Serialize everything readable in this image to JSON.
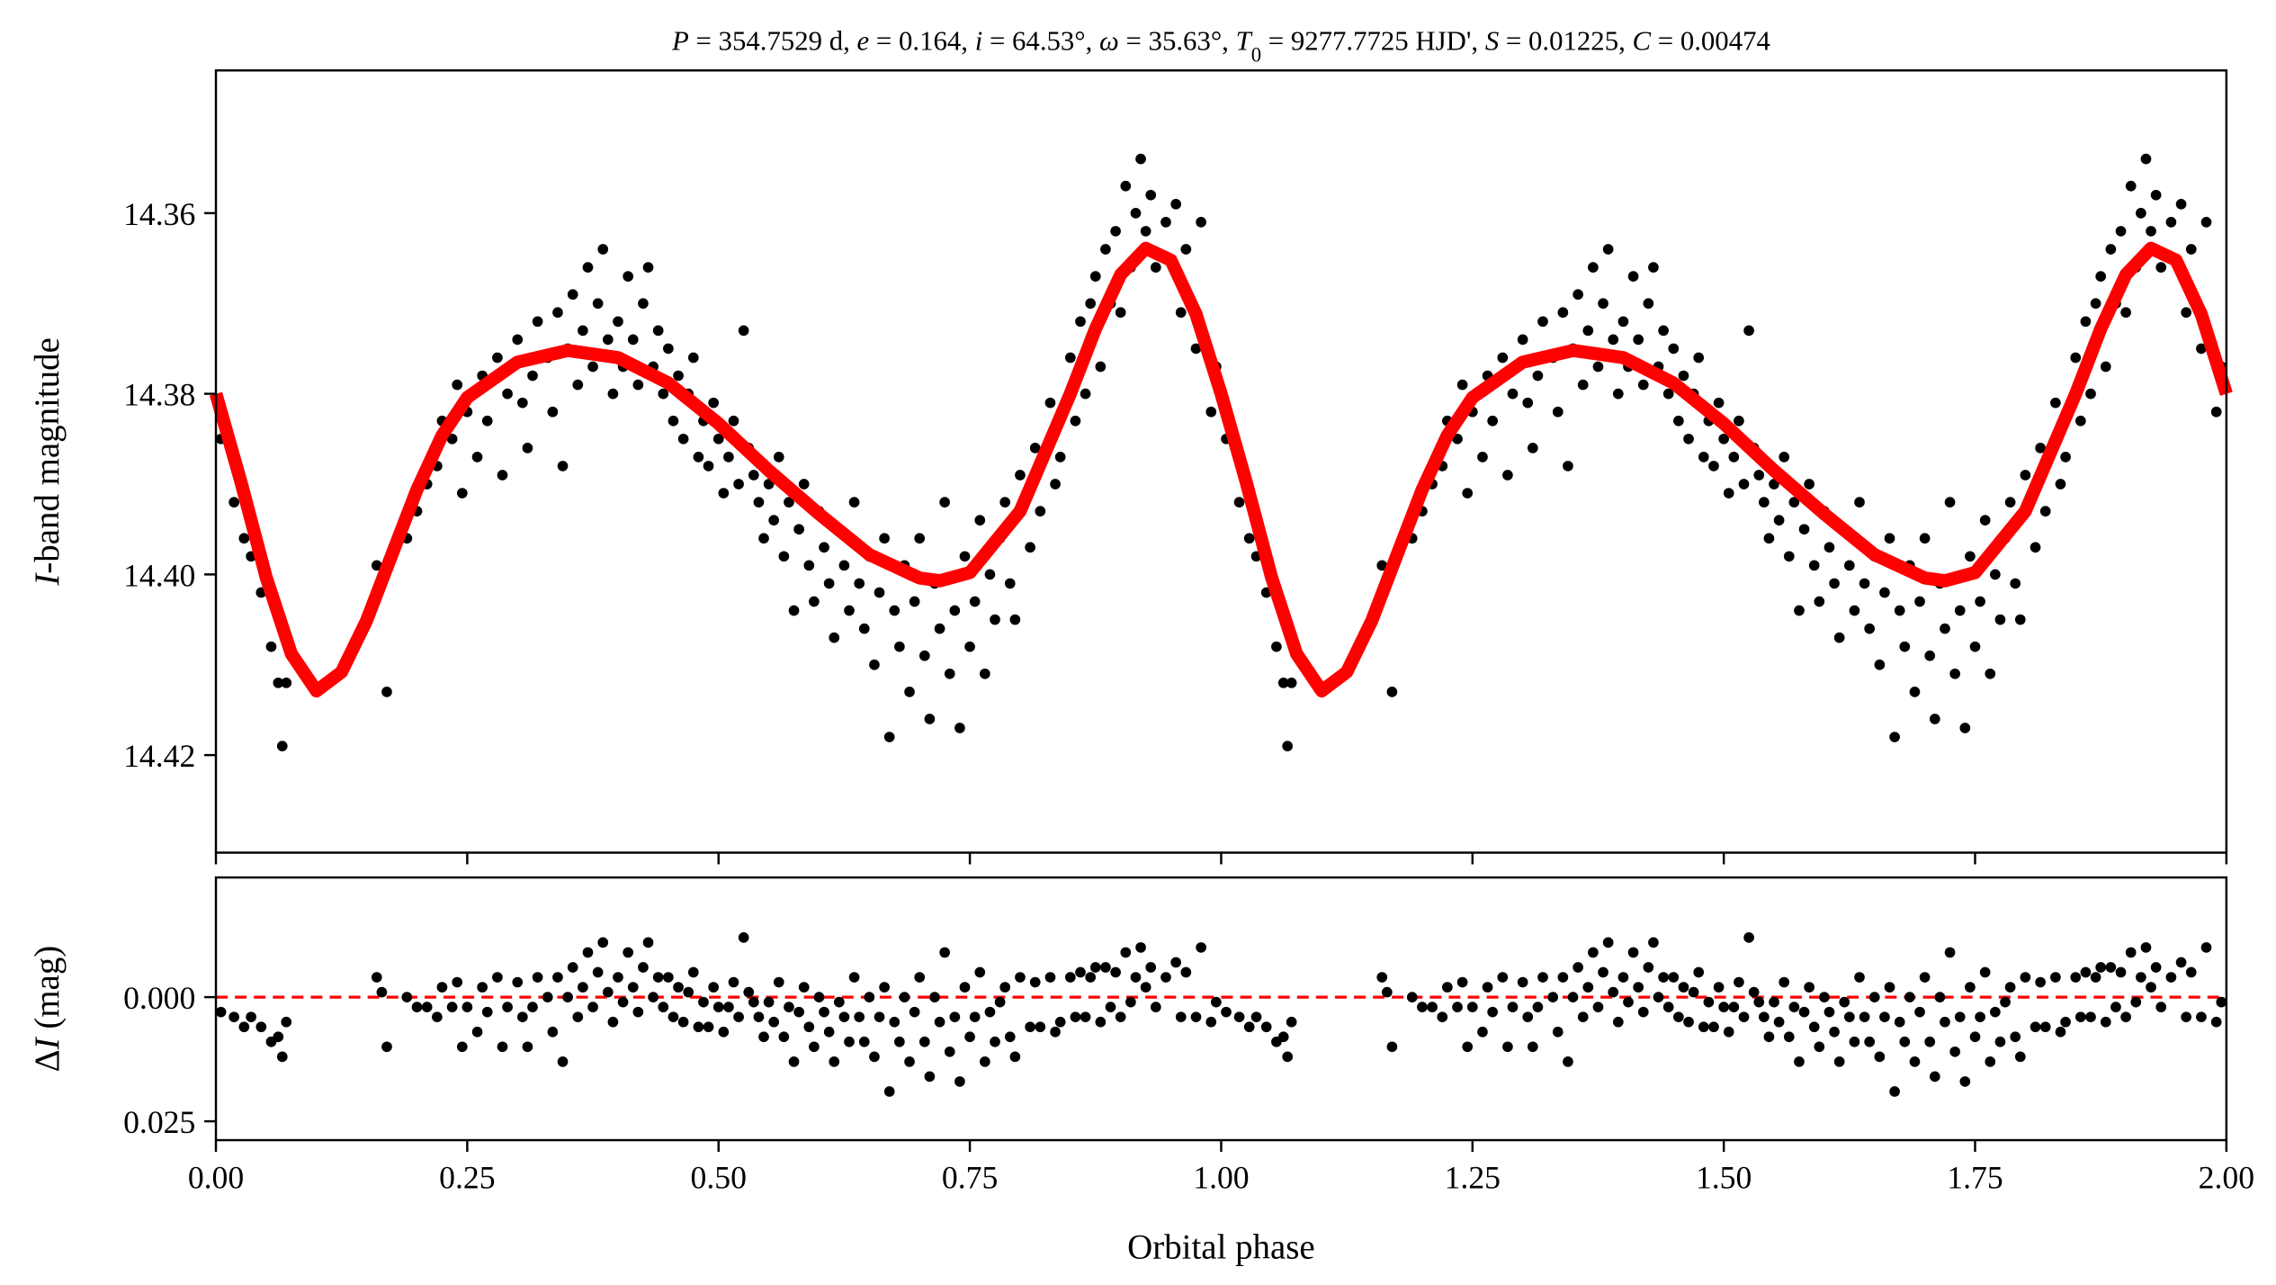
{
  "chart_data": [
    {
      "type": "scatter",
      "panel": "top",
      "title_segments": [
        {
          "t": "P",
          "i": true
        },
        {
          "t": " = 354.7529 d, "
        },
        {
          "t": "e",
          "i": true
        },
        {
          "t": " = 0.164, "
        },
        {
          "t": "i",
          "i": true
        },
        {
          "t": " = 64.53°, "
        },
        {
          "t": "ω",
          "i": true
        },
        {
          "t": " = 35.63°, "
        },
        {
          "t": "T",
          "i": true
        },
        {
          "t": "0",
          "sub": true
        },
        {
          "t": " = 9277.7725 HJD', "
        },
        {
          "t": "S",
          "i": true
        },
        {
          "t": " = 0.01225, "
        },
        {
          "t": "C",
          "i": true
        },
        {
          "t": " = 0.00474"
        }
      ],
      "ylabel_italic": "I",
      "ylabel_rest": "-band magnitude",
      "ylim": [
        14.4308,
        14.3442
      ],
      "yticks": [
        "14.36",
        "14.38",
        "14.40",
        "14.42"
      ],
      "xlim": [
        0,
        2
      ],
      "grid": false,
      "point_color": "#000000",
      "model_color": "#ff0000",
      "model_curve": [
        [
          0.0,
          14.38
        ],
        [
          0.025,
          14.3898
        ],
        [
          0.05,
          14.4003
        ],
        [
          0.075,
          14.4088
        ],
        [
          0.1,
          14.4129
        ],
        [
          0.125,
          14.4108
        ],
        [
          0.15,
          14.4051
        ],
        [
          0.175,
          14.3978
        ],
        [
          0.2,
          14.3906
        ],
        [
          0.225,
          14.3846
        ],
        [
          0.25,
          14.3804
        ],
        [
          0.3,
          14.3765
        ],
        [
          0.35,
          14.3752
        ],
        [
          0.4,
          14.376
        ],
        [
          0.45,
          14.3788
        ],
        [
          0.5,
          14.3833
        ],
        [
          0.55,
          14.3885
        ],
        [
          0.6,
          14.3933
        ],
        [
          0.65,
          14.3978
        ],
        [
          0.7,
          14.4004
        ],
        [
          0.72,
          14.4007
        ],
        [
          0.75,
          14.3998
        ],
        [
          0.8,
          14.393
        ],
        [
          0.85,
          14.38
        ],
        [
          0.875,
          14.3728
        ],
        [
          0.9,
          14.3668
        ],
        [
          0.925,
          14.3639
        ],
        [
          0.95,
          14.3652
        ],
        [
          0.975,
          14.3712
        ],
        [
          1.0,
          14.38
        ]
      ],
      "points_phase_mag_residual": [
        [
          0.005,
          14.385,
          0.003
        ],
        [
          0.018,
          14.392,
          0.004
        ],
        [
          0.028,
          14.396,
          0.006
        ],
        [
          0.035,
          14.398,
          0.004
        ],
        [
          0.045,
          14.402,
          0.006
        ],
        [
          0.055,
          14.408,
          0.009
        ],
        [
          0.062,
          14.412,
          0.008
        ],
        [
          0.066,
          14.419,
          0.012
        ],
        [
          0.07,
          14.412,
          0.005
        ],
        [
          0.16,
          14.399,
          -0.004
        ],
        [
          0.165,
          14.401,
          -0.001
        ],
        [
          0.17,
          14.413,
          0.01
        ],
        [
          0.19,
          14.396,
          0.0
        ],
        [
          0.2,
          14.393,
          0.002
        ],
        [
          0.21,
          14.39,
          0.002
        ],
        [
          0.22,
          14.388,
          0.004
        ],
        [
          0.225,
          14.383,
          -0.002
        ],
        [
          0.235,
          14.385,
          0.002
        ],
        [
          0.24,
          14.379,
          -0.003
        ],
        [
          0.245,
          14.391,
          0.01
        ],
        [
          0.25,
          14.382,
          0.002
        ],
        [
          0.26,
          14.387,
          0.007
        ],
        [
          0.265,
          14.378,
          -0.002
        ],
        [
          0.27,
          14.383,
          0.003
        ],
        [
          0.28,
          14.376,
          -0.004
        ],
        [
          0.285,
          14.389,
          0.01
        ],
        [
          0.29,
          14.38,
          0.002
        ],
        [
          0.3,
          14.374,
          -0.003
        ],
        [
          0.305,
          14.381,
          0.004
        ],
        [
          0.31,
          14.386,
          0.01
        ],
        [
          0.315,
          14.378,
          0.002
        ],
        [
          0.32,
          14.372,
          -0.004
        ],
        [
          0.33,
          14.376,
          0.0
        ],
        [
          0.335,
          14.382,
          0.007
        ],
        [
          0.34,
          14.371,
          -0.004
        ],
        [
          0.345,
          14.388,
          0.013
        ],
        [
          0.35,
          14.375,
          0.0
        ],
        [
          0.355,
          14.369,
          -0.006
        ],
        [
          0.36,
          14.379,
          0.004
        ],
        [
          0.365,
          14.373,
          -0.002
        ],
        [
          0.37,
          14.366,
          -0.009
        ],
        [
          0.375,
          14.377,
          0.002
        ],
        [
          0.38,
          14.37,
          -0.005
        ],
        [
          0.385,
          14.364,
          -0.011
        ],
        [
          0.39,
          14.374,
          -0.001
        ],
        [
          0.395,
          14.38,
          0.005
        ],
        [
          0.4,
          14.372,
          -0.004
        ],
        [
          0.405,
          14.377,
          0.001
        ],
        [
          0.41,
          14.367,
          -0.009
        ],
        [
          0.415,
          14.374,
          -0.002
        ],
        [
          0.42,
          14.379,
          0.003
        ],
        [
          0.425,
          14.37,
          -0.006
        ],
        [
          0.43,
          14.366,
          -0.011
        ],
        [
          0.435,
          14.377,
          0.0
        ],
        [
          0.44,
          14.373,
          -0.004
        ],
        [
          0.445,
          14.38,
          0.002
        ],
        [
          0.45,
          14.375,
          -0.004
        ],
        [
          0.455,
          14.383,
          0.004
        ],
        [
          0.46,
          14.378,
          -0.002
        ],
        [
          0.465,
          14.385,
          0.005
        ],
        [
          0.47,
          14.38,
          -0.001
        ],
        [
          0.475,
          14.376,
          -0.005
        ],
        [
          0.48,
          14.387,
          0.006
        ],
        [
          0.485,
          14.383,
          0.001
        ],
        [
          0.49,
          14.388,
          0.006
        ],
        [
          0.495,
          14.381,
          -0.002
        ],
        [
          0.5,
          14.385,
          0.002
        ],
        [
          0.505,
          14.391,
          0.007
        ],
        [
          0.51,
          14.387,
          0.002
        ],
        [
          0.515,
          14.383,
          -0.003
        ],
        [
          0.52,
          14.39,
          0.004
        ],
        [
          0.525,
          14.373,
          -0.012
        ],
        [
          0.53,
          14.386,
          -0.001
        ],
        [
          0.535,
          14.389,
          0.001
        ],
        [
          0.54,
          14.392,
          0.004
        ],
        [
          0.545,
          14.396,
          0.008
        ],
        [
          0.55,
          14.39,
          0.001
        ],
        [
          0.555,
          14.394,
          0.005
        ],
        [
          0.56,
          14.387,
          -0.003
        ],
        [
          0.565,
          14.398,
          0.008
        ],
        [
          0.57,
          14.392,
          0.002
        ],
        [
          0.575,
          14.404,
          0.013
        ],
        [
          0.58,
          14.395,
          0.003
        ],
        [
          0.585,
          14.39,
          -0.002
        ],
        [
          0.59,
          14.399,
          0.006
        ],
        [
          0.595,
          14.403,
          0.01
        ],
        [
          0.6,
          14.393,
          0.0
        ],
        [
          0.605,
          14.397,
          0.003
        ],
        [
          0.61,
          14.401,
          0.007
        ],
        [
          0.615,
          14.407,
          0.013
        ],
        [
          0.62,
          14.395,
          0.001
        ],
        [
          0.625,
          14.399,
          0.004
        ],
        [
          0.63,
          14.404,
          0.009
        ],
        [
          0.635,
          14.392,
          -0.004
        ],
        [
          0.64,
          14.401,
          0.004
        ],
        [
          0.645,
          14.406,
          0.009
        ],
        [
          0.65,
          14.398,
          0.0
        ],
        [
          0.655,
          14.41,
          0.012
        ],
        [
          0.66,
          14.402,
          0.004
        ],
        [
          0.665,
          14.396,
          -0.002
        ],
        [
          0.67,
          14.418,
          0.019
        ],
        [
          0.675,
          14.404,
          0.005
        ],
        [
          0.68,
          14.408,
          0.009
        ],
        [
          0.685,
          14.399,
          0.0
        ],
        [
          0.69,
          14.413,
          0.013
        ],
        [
          0.695,
          14.403,
          0.003
        ],
        [
          0.7,
          14.396,
          -0.004
        ],
        [
          0.705,
          14.409,
          0.009
        ],
        [
          0.71,
          14.416,
          0.016
        ],
        [
          0.715,
          14.401,
          0.0
        ],
        [
          0.72,
          14.406,
          0.005
        ],
        [
          0.725,
          14.392,
          -0.009
        ],
        [
          0.73,
          14.411,
          0.011
        ],
        [
          0.735,
          14.404,
          0.004
        ],
        [
          0.74,
          14.417,
          0.017
        ],
        [
          0.745,
          14.398,
          -0.002
        ],
        [
          0.75,
          14.408,
          0.008
        ],
        [
          0.755,
          14.403,
          0.004
        ],
        [
          0.76,
          14.394,
          -0.005
        ],
        [
          0.765,
          14.411,
          0.013
        ],
        [
          0.77,
          14.4,
          0.003
        ],
        [
          0.775,
          14.405,
          0.009
        ],
        [
          0.78,
          14.396,
          0.001
        ],
        [
          0.785,
          14.392,
          -0.002
        ],
        [
          0.79,
          14.401,
          0.008
        ],
        [
          0.795,
          14.405,
          0.012
        ],
        [
          0.8,
          14.389,
          -0.004
        ],
        [
          0.81,
          14.397,
          0.006
        ],
        [
          0.815,
          14.386,
          -0.003
        ],
        [
          0.82,
          14.393,
          0.006
        ],
        [
          0.83,
          14.381,
          -0.004
        ],
        [
          0.835,
          14.39,
          0.007
        ],
        [
          0.84,
          14.387,
          0.005
        ],
        [
          0.85,
          14.376,
          -0.004
        ],
        [
          0.855,
          14.383,
          0.004
        ],
        [
          0.86,
          14.372,
          -0.005
        ],
        [
          0.865,
          14.38,
          0.004
        ],
        [
          0.87,
          14.37,
          -0.004
        ],
        [
          0.875,
          14.367,
          -0.006
        ],
        [
          0.88,
          14.377,
          0.005
        ],
        [
          0.885,
          14.364,
          -0.006
        ],
        [
          0.89,
          14.37,
          0.002
        ],
        [
          0.895,
          14.362,
          -0.005
        ],
        [
          0.9,
          14.371,
          0.004
        ],
        [
          0.905,
          14.357,
          -0.009
        ],
        [
          0.91,
          14.366,
          0.001
        ],
        [
          0.915,
          14.36,
          -0.004
        ],
        [
          0.92,
          14.354,
          -0.01
        ],
        [
          0.925,
          14.362,
          -0.002
        ],
        [
          0.93,
          14.358,
          -0.006
        ],
        [
          0.935,
          14.366,
          0.002
        ],
        [
          0.945,
          14.361,
          -0.004
        ],
        [
          0.955,
          14.359,
          -0.007
        ],
        [
          0.96,
          14.371,
          0.004
        ],
        [
          0.965,
          14.364,
          -0.005
        ],
        [
          0.975,
          14.375,
          0.004
        ],
        [
          0.98,
          14.361,
          -0.01
        ],
        [
          0.99,
          14.382,
          0.005
        ],
        [
          0.995,
          14.377,
          0.001
        ]
      ],
      "phase_repeated_cycles": 2
    },
    {
      "type": "scatter",
      "panel": "bottom",
      "ylabel_prefix": "Δ",
      "ylabel_italic": "I",
      "ylabel_rest": " (mag)",
      "ylim": [
        0.0288,
        -0.0241
      ],
      "yticks": [
        "0.000",
        "0.025"
      ],
      "reference_line": {
        "y": 0,
        "style": "dashed",
        "color": "#ff0000"
      },
      "xlabel": "Orbital phase",
      "xlim": [
        0,
        2
      ],
      "xticks": [
        "0.00",
        "0.25",
        "0.50",
        "0.75",
        "1.00",
        "1.25",
        "1.50",
        "1.75",
        "2.00"
      ]
    }
  ]
}
